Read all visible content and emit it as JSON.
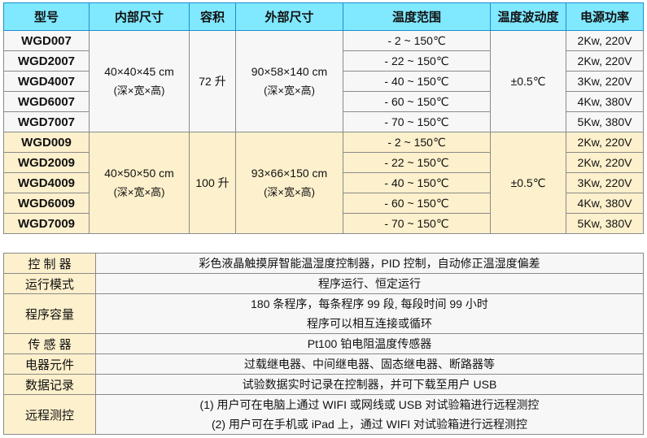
{
  "spec_table": {
    "headers": [
      "型号",
      "内部尺寸",
      "容积",
      "外部尺寸",
      "温度范围",
      "温度波动度",
      "电源功率"
    ],
    "groups": [
      {
        "inner_size": "40×40×45 cm",
        "inner_note": "(深×宽×高)",
        "volume": "72 升",
        "outer_size": "90×58×140 cm",
        "outer_note": "(深×宽×高)",
        "fluctuation": "±0.5℃",
        "rows": [
          {
            "model": "WGD007",
            "range": "- 2 ~ 150℃",
            "power": "2Kw, 220V"
          },
          {
            "model": "WGD2007",
            "range": "- 22 ~ 150℃",
            "power": "2Kw, 220V"
          },
          {
            "model": "WGD4007",
            "range": "- 40 ~ 150℃",
            "power": "3Kw, 220V"
          },
          {
            "model": "WGD6007",
            "range": "- 60 ~ 150℃",
            "power": "4Kw, 380V"
          },
          {
            "model": "WGD7007",
            "range": "- 70 ~ 150℃",
            "power": "5Kw, 380V"
          }
        ]
      },
      {
        "inner_size": "40×50×50 cm",
        "inner_note": "(深×宽×高)",
        "volume": "100 升",
        "outer_size": "93×66×150 cm",
        "outer_note": "(深×宽×高)",
        "fluctuation": "±0.5℃",
        "rows": [
          {
            "model": "WGD009",
            "range": "- 2 ~ 150℃",
            "power": "2Kw, 220V"
          },
          {
            "model": "WGD2009",
            "range": "- 22 ~ 150℃",
            "power": "2Kw, 220V"
          },
          {
            "model": "WGD4009",
            "range": "- 40 ~ 150℃",
            "power": "3Kw, 220V"
          },
          {
            "model": "WGD6009",
            "range": "- 60 ~ 150℃",
            "power": "4Kw, 380V"
          },
          {
            "model": "WGD7009",
            "range": "- 70 ~ 150℃",
            "power": "5Kw, 380V"
          }
        ]
      }
    ]
  },
  "feature_table": [
    {
      "label": "控 制 器",
      "lines": [
        "彩色液晶触摸屏智能温湿度控制器，PID 控制，自动修正温湿度偏差"
      ]
    },
    {
      "label": "运行模式",
      "lines": [
        "程序运行、恒定运行"
      ]
    },
    {
      "label": "程序容量",
      "lines": [
        "180 条程序，每条程序 99 段, 每段时间 99 小时",
        "程序可以相互连接或循环"
      ]
    },
    {
      "label": "传 感 器",
      "lines": [
        "Pt100 铂电阻温度传感器"
      ]
    },
    {
      "label": "电器元件",
      "lines": [
        "过载继电器、中间继电器、固态继电器、断路器等"
      ]
    },
    {
      "label": "数据记录",
      "lines": [
        "试验数据实时记录在控制器，并可下载至用户 USB"
      ]
    },
    {
      "label": "远程测控",
      "lines": [
        "(1)  用户可在电脑上通过 WIFI 或网线或 USB 对试验箱进行远程测控",
        "(2)  用户可在手机或 iPad 上，通过 WIFI 对试验箱进行远程测控"
      ]
    }
  ],
  "colors": {
    "header_bg": "#80e8ff",
    "group1_bg": "#f7f7f7",
    "group2_bg": "#fdf0cc",
    "border": "#8a8a8a"
  }
}
